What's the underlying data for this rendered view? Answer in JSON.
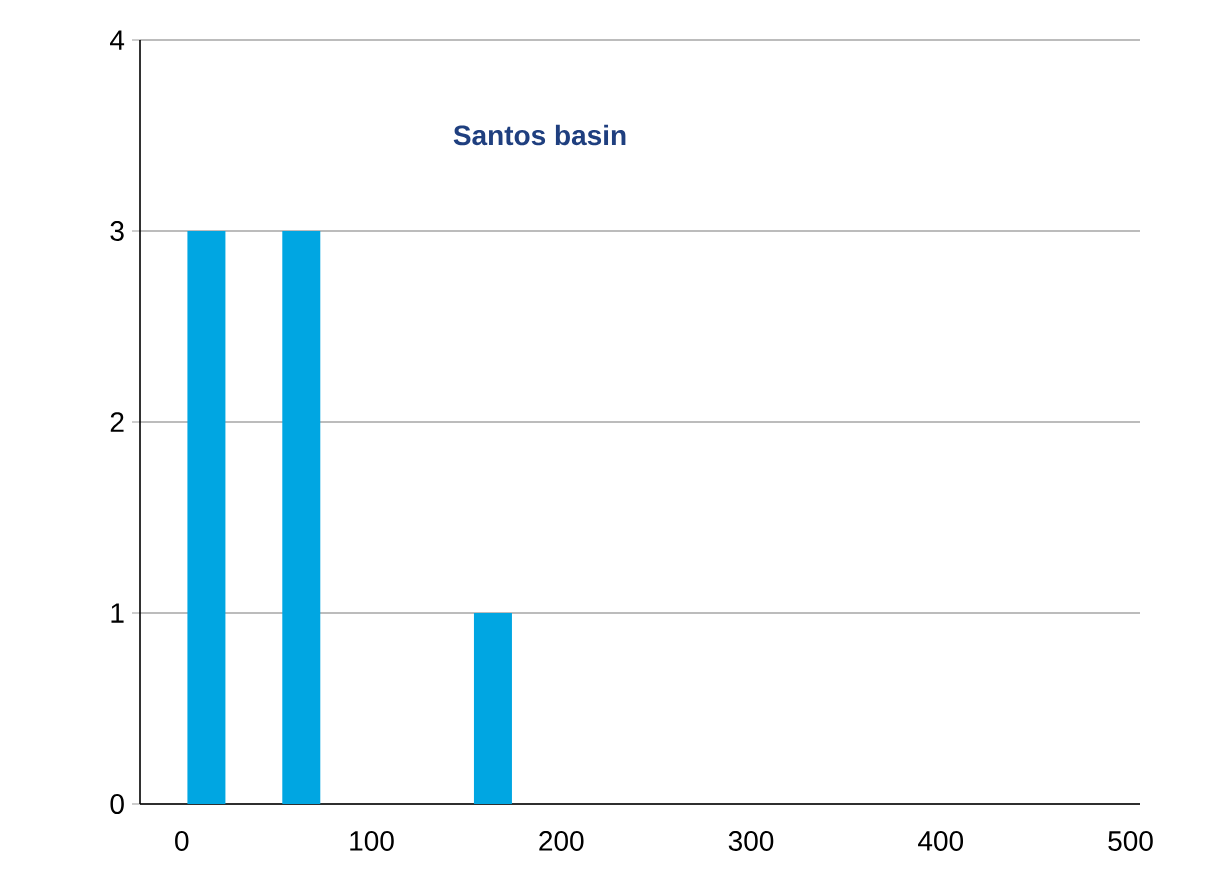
{
  "chart_data": {
    "type": "bar",
    "title": "Santos basin",
    "x": [
      13,
      63,
      164
    ],
    "values": [
      3,
      3,
      1
    ],
    "color": "#00a6e2",
    "xlim": [
      -22,
      505
    ],
    "xticks": [
      0,
      100,
      200,
      300,
      400,
      500
    ],
    "ylim": [
      0,
      4
    ],
    "yticks": [
      0,
      1,
      2,
      3,
      4
    ],
    "grid": "y"
  }
}
